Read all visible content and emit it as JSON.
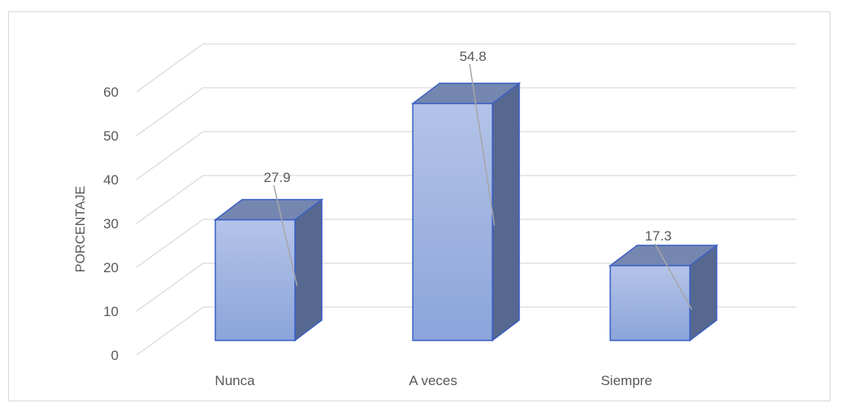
{
  "chart_data": {
    "type": "bar",
    "title": "",
    "xlabel": "",
    "ylabel": "PORCENTAJE",
    "ylim": [
      0,
      60
    ],
    "yticks": [
      0,
      10,
      20,
      30,
      40,
      50,
      60
    ],
    "categories": [
      "Nunca",
      "A veces",
      "Siempre"
    ],
    "values": [
      27.9,
      54.8,
      17.3
    ],
    "data_labels": [
      "27.9",
      "54.8",
      "17.3"
    ],
    "grid": true,
    "legend": "none",
    "style": "3d-column",
    "colors": {
      "bar_front_top": "#b4c3e8",
      "bar_front_bottom": "#8ba4da",
      "bar_side": "#56688f",
      "bar_top": "#7587b0",
      "bar_edge": "#3a5fc4",
      "grid": "#d9d9d9",
      "text": "#595959"
    }
  }
}
